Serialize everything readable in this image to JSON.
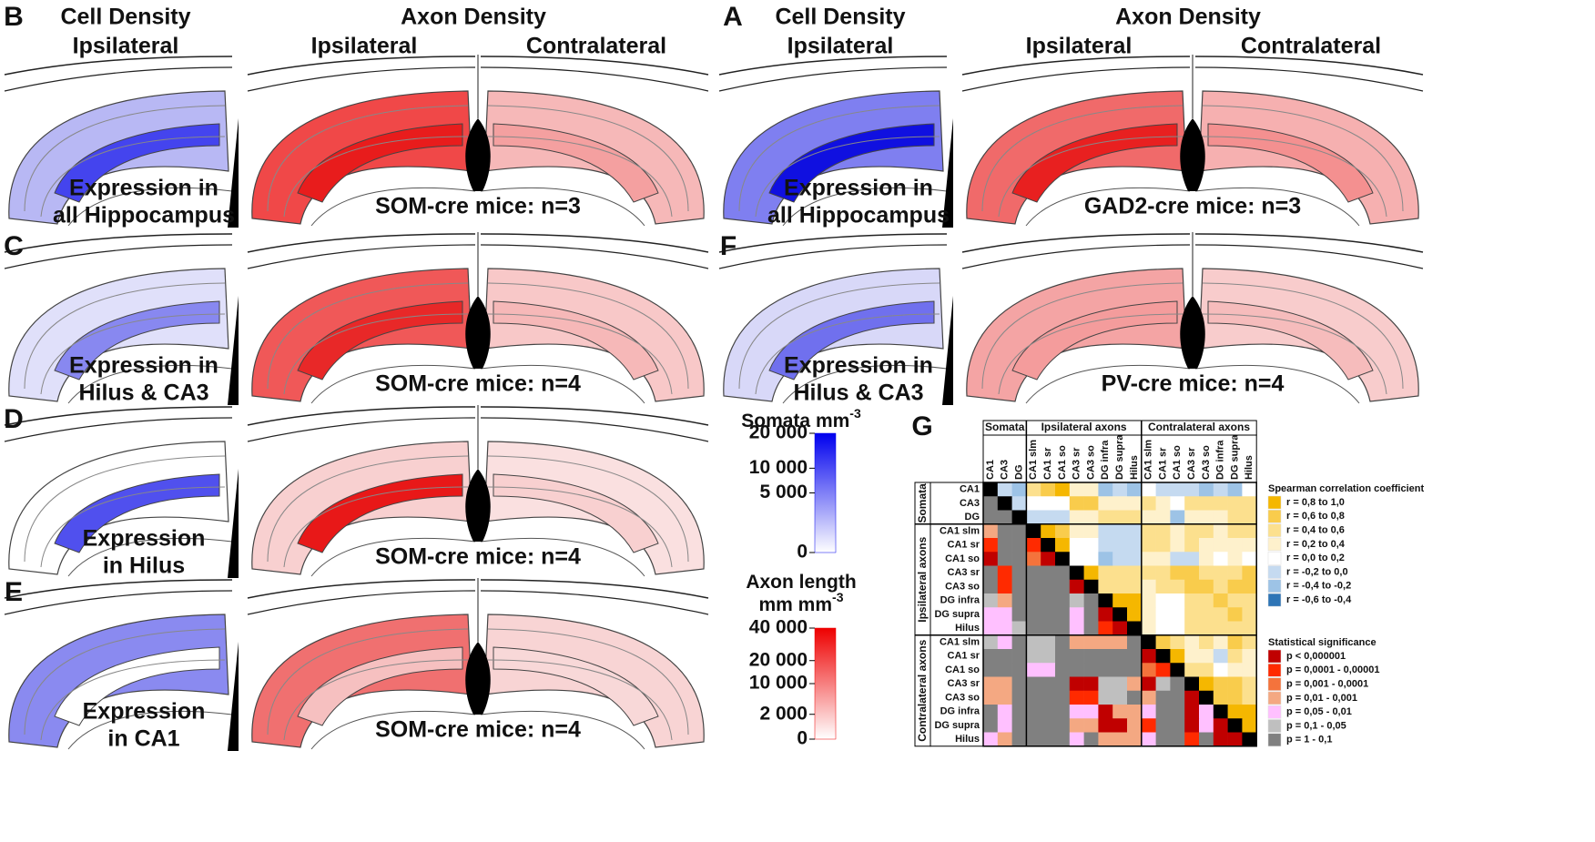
{
  "headers": [
    {
      "cell": "Cell Density",
      "cell_side": "Ipsilateral",
      "axon": "Axon Density",
      "sides": [
        "Ipsilateral",
        "Contralateral"
      ]
    },
    {
      "cell": "Cell Density",
      "cell_side": "Ipsilateral",
      "axon": "Axon Density",
      "sides": [
        "Ipsilateral",
        "Contralateral"
      ]
    }
  ],
  "panels": [
    {
      "letter": "B",
      "expression": [
        "Expression in",
        "all Hippocampus"
      ],
      "mice": "SOM-cre mice: n=3"
    },
    {
      "letter": "A",
      "expression": [
        "Expression in",
        "all Hippocampus"
      ],
      "mice": "GAD2-cre mice: n=3"
    },
    {
      "letter": "C",
      "expression": [
        "Expression in",
        "Hilus & CA3"
      ],
      "mice": "SOM-cre mice: n=4"
    },
    {
      "letter": "F",
      "expression": [
        "Expression in",
        "Hilus & CA3"
      ],
      "mice": "PV-cre mice: n=4"
    },
    {
      "letter": "D",
      "expression": [
        "Expression",
        "in Hilus"
      ],
      "mice": "SOM-cre mice: n=4"
    },
    {
      "letter": "E",
      "expression": [
        "Expression",
        "in CA1"
      ],
      "mice": "SOM-cre mice: n=4"
    }
  ],
  "colorbars": [
    {
      "title": [
        "Somata mm"
      ],
      "sup": "-3",
      "scale": "sqrt",
      "lim": [
        0,
        20000
      ],
      "color": "#0000ee",
      "ticks": [
        {
          "value": 20000,
          "label": "20 000"
        },
        {
          "value": 10000,
          "label": "10 000"
        },
        {
          "value": 5000,
          "label": "5 000"
        },
        0
      ]
    },
    {
      "title": [
        "Axon length",
        "mm mm"
      ],
      "sup": "-3",
      "scale": "sqrt",
      "lim": [
        0,
        40000
      ],
      "color": "#ee0000",
      "ticks": [
        {
          "value": 40000,
          "label": "40 000"
        },
        {
          "value": 20000,
          "label": "20 000"
        },
        {
          "value": 10000,
          "label": "10 000"
        },
        {
          "value": 2000,
          "label": "2 000"
        },
        0
      ]
    }
  ],
  "correlation": {
    "letter": "G",
    "groups": [
      {
        "name": "Somata",
        "labels": [
          "CA1",
          "CA3",
          "DG"
        ]
      },
      {
        "name": "Ipsilateral axons",
        "labels": [
          "CA1 slm",
          "CA1 sr",
          "CA1 so",
          "CA3 sr",
          "CA3 so",
          "DG infra",
          "DG supra",
          "Hilus"
        ]
      },
      {
        "name": "Contralateral axons",
        "labels": [
          "CA1 slm",
          "CA1 sr",
          "CA1 so",
          "CA3 sr",
          "CA3 so",
          "DG infra",
          "DG supra",
          "Hilus"
        ]
      }
    ],
    "matrix": [
      [
        null,
        5,
        6,
        2,
        1,
        0,
        3,
        3,
        6,
        5,
        6,
        4,
        5,
        5,
        5,
        6,
        5,
        6,
        4
      ],
      [
        6,
        null,
        5,
        4,
        4,
        4,
        1,
        1,
        3,
        3,
        3,
        2,
        3,
        4,
        2,
        2,
        2,
        2,
        2
      ],
      [
        6,
        6,
        null,
        5,
        5,
        5,
        3,
        3,
        2,
        2,
        2,
        3,
        3,
        6,
        3,
        3,
        3,
        2,
        2
      ],
      [
        3,
        6,
        6,
        null,
        0,
        1,
        3,
        3,
        5,
        5,
        5,
        2,
        2,
        3,
        2,
        2,
        3,
        2,
        2
      ],
      [
        1,
        6,
        6,
        1,
        null,
        0,
        4,
        4,
        5,
        5,
        5,
        2,
        2,
        3,
        2,
        3,
        3,
        3,
        3
      ],
      [
        0,
        6,
        6,
        2,
        0,
        null,
        4,
        4,
        6,
        5,
        5,
        3,
        3,
        5,
        5,
        3,
        4,
        3,
        4
      ],
      [
        6,
        1,
        6,
        6,
        6,
        6,
        null,
        0,
        2,
        2,
        2,
        2,
        2,
        1,
        1,
        2,
        2,
        2,
        1
      ],
      [
        6,
        1,
        6,
        6,
        6,
        6,
        0,
        null,
        2,
        2,
        2,
        3,
        2,
        2,
        1,
        1,
        2,
        1,
        1
      ],
      [
        5,
        3,
        6,
        6,
        6,
        6,
        5,
        6,
        null,
        0,
        0,
        3,
        4,
        4,
        2,
        2,
        1,
        2,
        2
      ],
      [
        4,
        4,
        6,
        6,
        6,
        6,
        4,
        6,
        0,
        null,
        0,
        3,
        4,
        4,
        2,
        2,
        2,
        1,
        2
      ],
      [
        4,
        4,
        5,
        6,
        6,
        6,
        4,
        6,
        1,
        0,
        null,
        3,
        4,
        4,
        2,
        2,
        2,
        2,
        2
      ],
      [
        5,
        4,
        6,
        5,
        5,
        6,
        3,
        3,
        3,
        3,
        6,
        null,
        1,
        2,
        3,
        2,
        3,
        1,
        2
      ],
      [
        6,
        6,
        6,
        5,
        5,
        6,
        6,
        6,
        6,
        6,
        6,
        0,
        null,
        0,
        3,
        3,
        5,
        2,
        3
      ],
      [
        6,
        6,
        6,
        4,
        4,
        6,
        6,
        6,
        6,
        6,
        6,
        2,
        1,
        null,
        2,
        2,
        4,
        3,
        3
      ],
      [
        3,
        3,
        6,
        6,
        6,
        6,
        0,
        0,
        5,
        5,
        3,
        0,
        5,
        6,
        null,
        0,
        1,
        1,
        2
      ],
      [
        3,
        3,
        6,
        6,
        6,
        6,
        1,
        1,
        5,
        5,
        6,
        3,
        6,
        6,
        0,
        null,
        1,
        1,
        2
      ],
      [
        6,
        4,
        6,
        6,
        6,
        6,
        4,
        4,
        0,
        3,
        3,
        4,
        6,
        6,
        0,
        4,
        null,
        0,
        0
      ],
      [
        6,
        4,
        6,
        6,
        6,
        6,
        3,
        3,
        0,
        0,
        3,
        1,
        6,
        6,
        0,
        4,
        0,
        null,
        0
      ],
      [
        4,
        3,
        6,
        6,
        6,
        6,
        4,
        6,
        3,
        3,
        3,
        4,
        6,
        6,
        1,
        6,
        0,
        0,
        null
      ]
    ],
    "upper_legend": {
      "title": "Spearman correlation coefficient",
      "items": [
        {
          "label": "r = 0,8 to 1,0",
          "color": "#f5b700"
        },
        {
          "label": "r = 0,6 to 0,8",
          "color": "#f9cc4c"
        },
        {
          "label": "r = 0,4 to 0,6",
          "color": "#fce08e"
        },
        {
          "label": "r = 0,2 to 0,4",
          "color": "#fef1cc"
        },
        {
          "label": "r = 0,0 to 0,2",
          "color": "#ffffff"
        },
        {
          "label": "r = -0,2 to 0,0",
          "color": "#c5daf0"
        },
        {
          "label": "r = -0,4 to -0,2",
          "color": "#9dc3e6"
        },
        {
          "label": "r = -0,6 to -0,4",
          "color": "#2e75b6"
        }
      ]
    },
    "lower_legend": {
      "title": "Statistical significance",
      "items": [
        {
          "label": "p < 0,000001",
          "color": "#c00000"
        },
        {
          "label": "p = 0,0001 - 0,00001",
          "color": "#ff2a00"
        },
        {
          "label": "p = 0,001 - 0,0001",
          "color": "#f4733c"
        },
        {
          "label": "p = 0,01 - 0,001",
          "color": "#f4a882"
        },
        {
          "label": "p = 0,05 - 0,01",
          "color": "#ffc0ff"
        },
        {
          "label": "p = 0,1 - 0,05",
          "color": "#bfbfbf"
        },
        {
          "label": "p = 1 - 0,1",
          "color": "#808080"
        }
      ]
    }
  }
}
